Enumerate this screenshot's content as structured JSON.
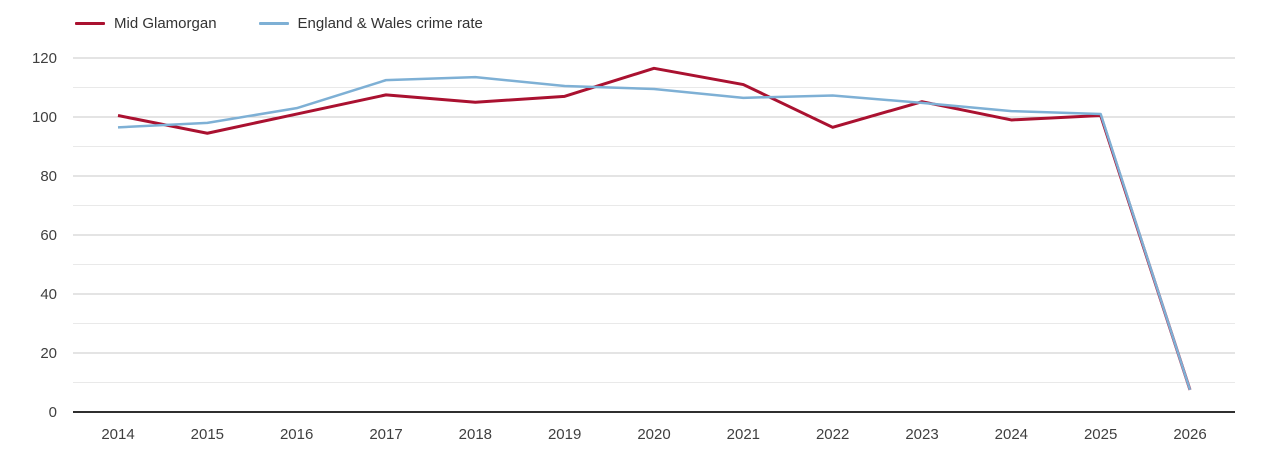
{
  "chart_data": {
    "type": "line",
    "title": "",
    "xlabel": "",
    "ylabel": "",
    "categories": [
      "2014",
      "2015",
      "2016",
      "2017",
      "2018",
      "2019",
      "2020",
      "2021",
      "2022",
      "2023",
      "2024",
      "2025",
      "2026"
    ],
    "series": [
      {
        "name": "Mid Glamorgan",
        "color": "#aa1130",
        "stroke_width": 3,
        "values": [
          100.5,
          94.5,
          101,
          107.5,
          105,
          107,
          116.5,
          111,
          96.5,
          105.2,
          99,
          100.5,
          7.5
        ]
      },
      {
        "name": "England & Wales crime rate",
        "color": "#7eb0d5",
        "stroke_width": 2.5,
        "values": [
          96.5,
          98,
          103,
          112.5,
          113.5,
          110.5,
          109.5,
          106.5,
          107.3,
          104.8,
          102,
          101,
          7.5
        ]
      }
    ],
    "ylim": [
      0,
      120
    ],
    "y_tick_step": 20,
    "y_minor_step": 10,
    "y_tick_labels": [
      "0",
      "20",
      "40",
      "60",
      "80",
      "100",
      "120"
    ],
    "grid": true,
    "legend_position": "top-left",
    "colors": {
      "grid_major": "#c9c9c9",
      "grid_minor": "#e9e9e9",
      "axis_line": "#2f2f2f",
      "tick_label": "#3f3f3f"
    }
  }
}
